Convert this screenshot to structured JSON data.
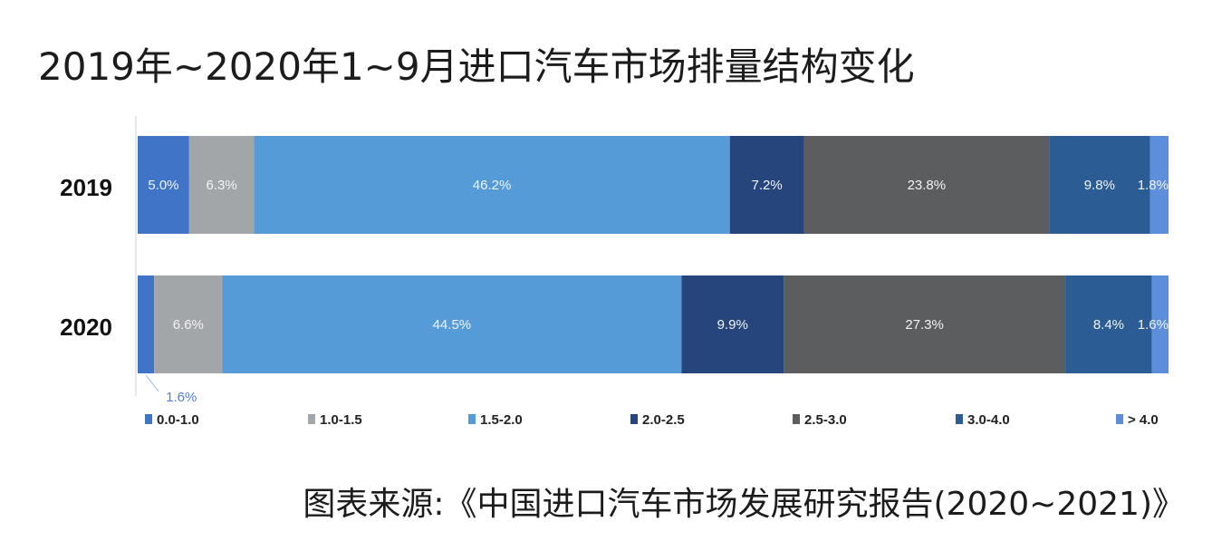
{
  "title": "2019年~2020年1~9月进口汽车市场排量结构变化",
  "source": "图表来源:《中国进口汽车市场发展研究报告(2020~2021)》",
  "colors": {
    "0.0-1.0": "#3f74c6",
    "1.0-1.5": "#a3a6a8",
    "1.5-2.0": "#559bd8",
    "2.0-2.5": "#26457d",
    "2.5-3.0": "#5b5d5f",
    "3.0-4.0": "#2b5d94",
    "> 4.0": "#5c8edc"
  },
  "chart_data": {
    "type": "bar",
    "orientation": "horizontal",
    "stacked": true,
    "normalized": true,
    "title": "2019年~2020年1~9月进口汽车市场排量结构变化",
    "categories": [
      "2019",
      "2020"
    ],
    "series": [
      {
        "name": "0.0-1.0",
        "values": [
          5.0,
          1.6
        ],
        "labels": [
          "5.0%",
          "1.6%"
        ]
      },
      {
        "name": "1.0-1.5",
        "values": [
          6.3,
          6.6
        ],
        "labels": [
          "6.3%",
          "6.6%"
        ]
      },
      {
        "name": "1.5-2.0",
        "values": [
          46.2,
          44.5
        ],
        "labels": [
          "46.2%",
          "44.5%"
        ]
      },
      {
        "name": "2.0-2.5",
        "values": [
          7.2,
          9.9
        ],
        "labels": [
          "7.2%",
          "9.9%"
        ]
      },
      {
        "name": "2.5-3.0",
        "values": [
          23.8,
          27.3
        ],
        "labels": [
          "23.8%",
          "27.3%"
        ]
      },
      {
        "name": "3.0-4.0",
        "values": [
          9.8,
          8.4
        ],
        "labels": [
          "9.8%",
          "8.4%"
        ]
      },
      {
        "name": "> 4.0",
        "values": [
          1.8,
          1.6
        ],
        "labels": [
          "1.8%",
          "1.6%"
        ]
      }
    ],
    "legend_position": "bottom",
    "grid": false
  }
}
